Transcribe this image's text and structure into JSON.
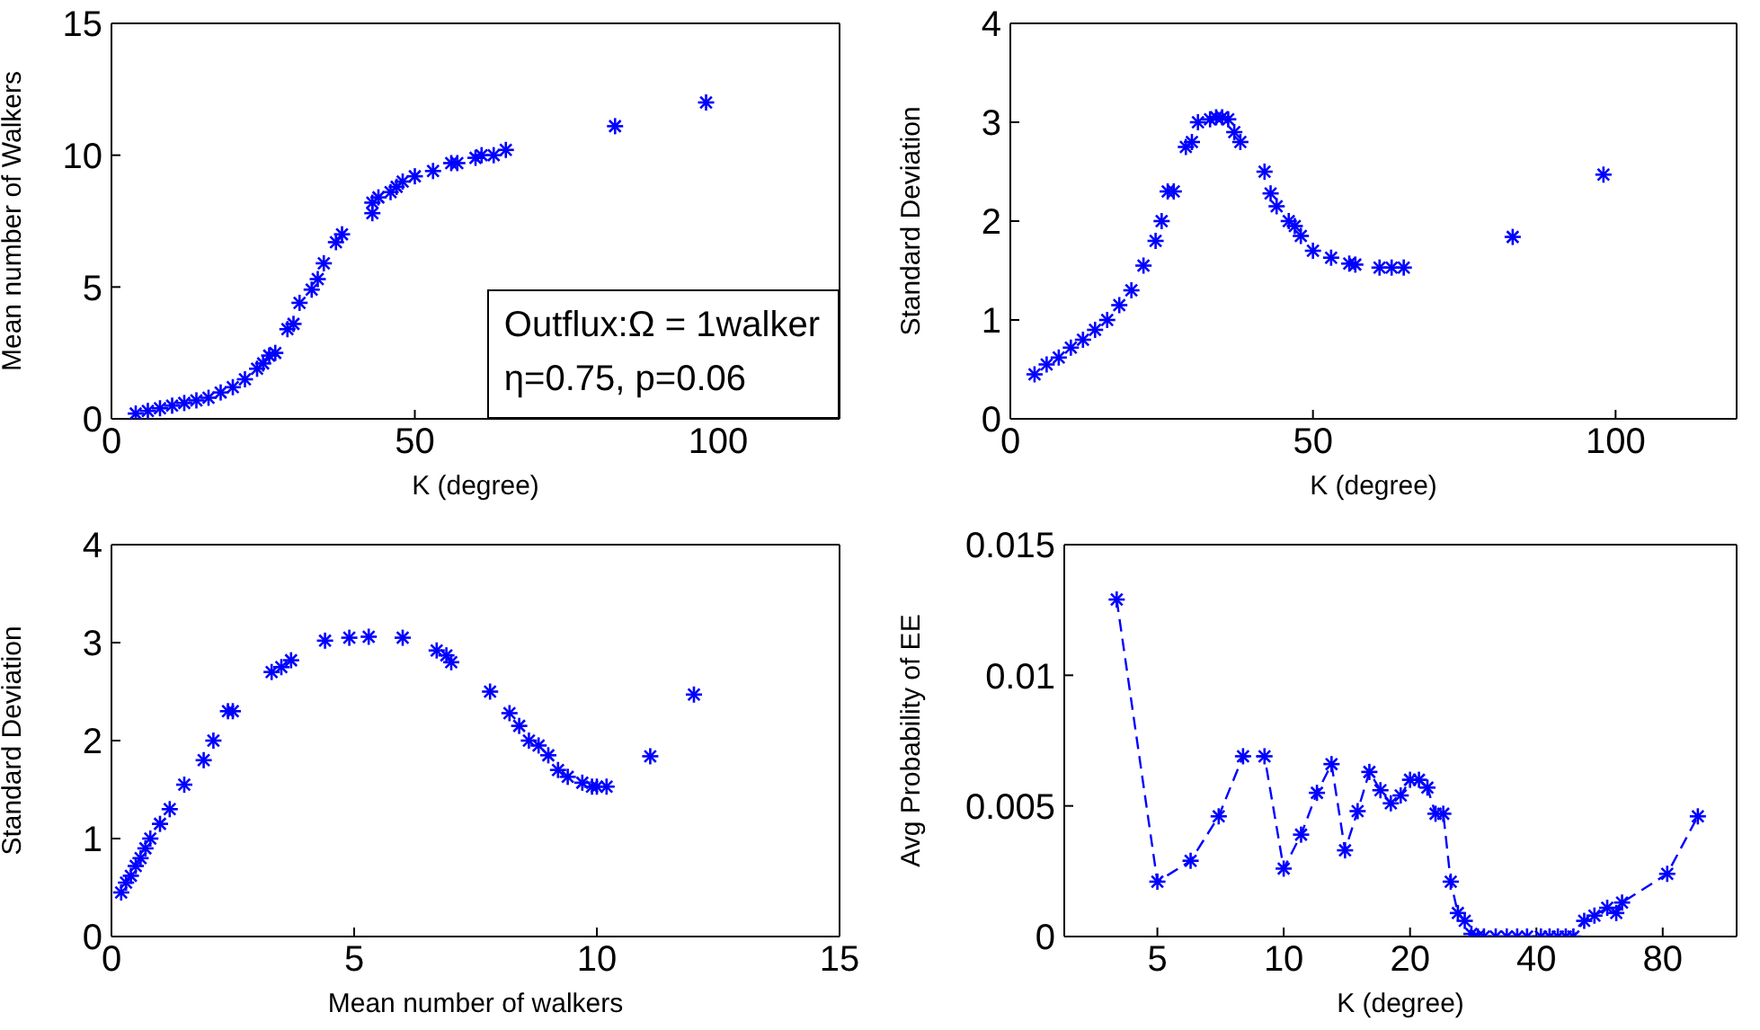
{
  "chart_data": [
    {
      "type": "scatter",
      "xlabel": "K (degree)",
      "ylabel": "Mean number of Walkers",
      "xlim": [
        0,
        120
      ],
      "xticks": [
        0,
        50,
        100
      ],
      "ylim": [
        0,
        15
      ],
      "yticks": [
        0,
        5,
        10,
        15
      ],
      "marker": "cross",
      "annotations": [
        "Outflux:Ω = 1walker",
        "η=0.75,  p=0.06"
      ],
      "series": [
        {
          "color": "#0000ff",
          "x": [
            4,
            6,
            8,
            10,
            12,
            14,
            16,
            18,
            20,
            22,
            24,
            25,
            26,
            27,
            29,
            30,
            31,
            33,
            34,
            35,
            37,
            38,
            43,
            43,
            44,
            46,
            47,
            48,
            50,
            53,
            56,
            57,
            60,
            61,
            63,
            65,
            83,
            98
          ],
          "values": [
            0.2,
            0.3,
            0.4,
            0.5,
            0.6,
            0.7,
            0.8,
            1.0,
            1.2,
            1.5,
            1.9,
            2.1,
            2.4,
            2.5,
            3.4,
            3.6,
            4.4,
            4.9,
            5.3,
            5.9,
            6.7,
            7.0,
            7.8,
            8.2,
            8.4,
            8.6,
            8.8,
            9.0,
            9.2,
            9.4,
            9.7,
            9.7,
            9.9,
            10.0,
            10.0,
            10.2,
            11.1,
            12.0
          ]
        }
      ]
    },
    {
      "type": "scatter",
      "xlabel": "K (degree)",
      "ylabel": "Standard Deviation",
      "xlim": [
        0,
        120
      ],
      "xticks": [
        0,
        50,
        100
      ],
      "ylim": [
        0,
        4
      ],
      "yticks": [
        0,
        1,
        2,
        3,
        4
      ],
      "marker": "cross",
      "series": [
        {
          "color": "#0000ff",
          "x": [
            4,
            6,
            8,
            10,
            12,
            14,
            16,
            18,
            20,
            22,
            24,
            25,
            26,
            27,
            29,
            30,
            31,
            33,
            34,
            35,
            36,
            37,
            38,
            42,
            43,
            44,
            46,
            47,
            48,
            50,
            53,
            56,
            57,
            61,
            63,
            65,
            83,
            98
          ],
          "values": [
            0.45,
            0.55,
            0.62,
            0.72,
            0.8,
            0.9,
            1.0,
            1.15,
            1.3,
            1.55,
            1.8,
            2.0,
            2.3,
            2.3,
            2.75,
            2.8,
            3.0,
            3.03,
            3.05,
            3.05,
            3.03,
            2.9,
            2.8,
            2.5,
            2.28,
            2.15,
            2.0,
            1.95,
            1.85,
            1.7,
            1.63,
            1.57,
            1.56,
            1.53,
            1.53,
            1.53,
            1.84,
            2.47
          ]
        }
      ]
    },
    {
      "type": "scatter",
      "xlabel": "Mean number of walkers",
      "ylabel": "Standard Deviation",
      "xlim": [
        0,
        15
      ],
      "xticks": [
        0,
        5,
        10,
        15
      ],
      "ylim": [
        0,
        4
      ],
      "yticks": [
        0,
        1,
        2,
        3,
        4
      ],
      "marker": "cross",
      "series": [
        {
          "color": "#0000ff",
          "x": [
            0.2,
            0.3,
            0.4,
            0.5,
            0.6,
            0.7,
            0.8,
            1.0,
            1.2,
            1.5,
            1.9,
            2.1,
            2.4,
            2.5,
            3.3,
            3.5,
            3.7,
            4.4,
            4.9,
            5.3,
            6.0,
            6.7,
            6.9,
            7.0,
            7.8,
            8.2,
            8.4,
            8.6,
            8.8,
            9.0,
            9.2,
            9.4,
            9.7,
            9.9,
            10.0,
            10.2,
            11.1,
            12.0
          ],
          "values": [
            0.45,
            0.55,
            0.62,
            0.72,
            0.8,
            0.9,
            1.0,
            1.15,
            1.3,
            1.55,
            1.8,
            2.0,
            2.3,
            2.3,
            2.7,
            2.75,
            2.82,
            3.02,
            3.05,
            3.06,
            3.05,
            2.92,
            2.87,
            2.8,
            2.5,
            2.28,
            2.15,
            2.0,
            1.95,
            1.85,
            1.7,
            1.63,
            1.57,
            1.53,
            1.53,
            1.53,
            1.84,
            2.47
          ]
        }
      ]
    },
    {
      "type": "line",
      "xlabel": "K (degree)",
      "ylabel": "Avg Probability of EE",
      "log": "x",
      "xlim": [
        3,
        120
      ],
      "xticks": [
        5,
        10,
        20,
        40,
        80
      ],
      "ylim": [
        0,
        0.015
      ],
      "yticks": [
        0,
        0.005,
        0.01,
        0.015
      ],
      "marker": "cross",
      "line_style": "dashed",
      "series": [
        {
          "color": "#0000ff",
          "x": [
            4,
            5,
            6,
            7,
            8,
            9,
            10,
            11,
            12,
            13,
            14,
            15,
            16,
            17,
            18,
            19,
            20,
            21,
            22,
            23,
            24,
            25,
            26,
            27,
            28,
            29,
            30,
            32,
            34,
            36,
            38,
            41,
            43,
            45,
            47,
            49,
            52,
            55,
            59,
            62,
            64,
            82,
            97
          ],
          "values": [
            0.0129,
            0.0021,
            0.0029,
            0.0046,
            0.0069,
            0.0069,
            0.0026,
            0.0039,
            0.0055,
            0.0066,
            0.0033,
            0.0048,
            0.0063,
            0.0056,
            0.0051,
            0.0054,
            0.006,
            0.006,
            0.0057,
            0.0047,
            0.0047,
            0.0021,
            0.0009,
            0.0006,
            0.0001,
            0,
            0,
            0,
            0,
            0,
            0,
            0,
            0,
            0,
            0,
            0,
            0.0006,
            0.0008,
            0.0011,
            0.0009,
            0.0013,
            0.0024,
            0.0046
          ]
        }
      ]
    }
  ]
}
